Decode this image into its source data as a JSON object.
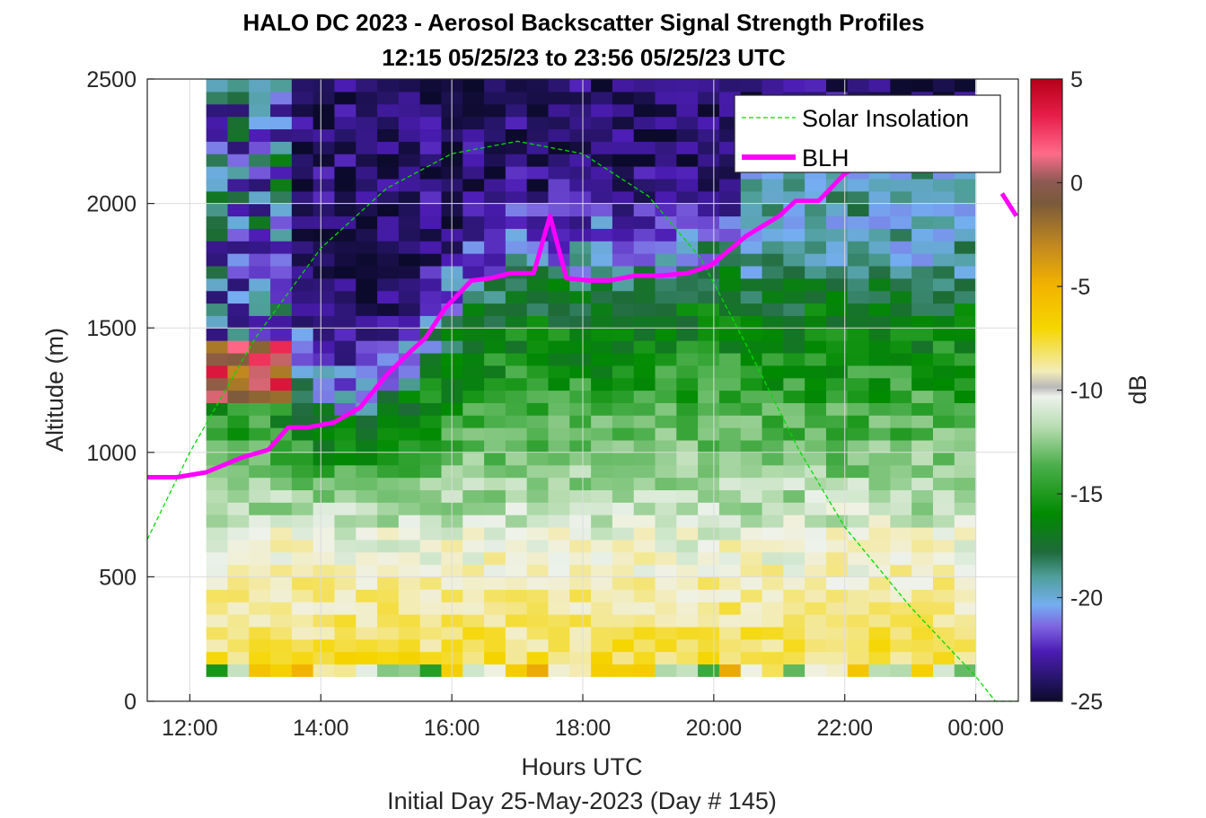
{
  "chart_data": {
    "type": "heatmap",
    "title": "HALO DC 2023 - Aerosol Backscatter Signal Strength Profiles",
    "subtitle": "12:15 05/25/23 to 23:56 05/25/23  UTC",
    "xlabel": "Hours UTC",
    "xlabel2": "Initial Day 25-May-2023 (Day # 145)",
    "ylabel": "Altitude (m)",
    "xlim": [
      11.35,
      24.65
    ],
    "ylim": [
      0,
      2500
    ],
    "x_ticks": [
      12,
      14,
      16,
      18,
      20,
      22,
      24
    ],
    "x_tick_labels": [
      "12:00",
      "14:00",
      "16:00",
      "18:00",
      "20:00",
      "22:00",
      "00:00"
    ],
    "y_ticks": [
      0,
      500,
      1000,
      1500,
      2000,
      2500
    ],
    "y_tick_labels": [
      "0",
      "500",
      "1000",
      "1500",
      "2000",
      "2500"
    ],
    "grid": true,
    "legend_position": "top-right",
    "colorbar": {
      "label": "dB",
      "range": [
        -25,
        5
      ],
      "ticks": [
        5,
        0,
        -5,
        -10,
        -15,
        -20,
        -25
      ],
      "tick_labels": [
        "5",
        "0",
        "-5",
        "-10",
        "-15",
        "-20",
        "-25"
      ]
    },
    "heatmap": {
      "x_start": 12.25,
      "x_end": 24.0,
      "y_start": 100,
      "y_end": 2500,
      "anchor_hours": [
        12.25,
        13.0,
        14.0,
        15.0,
        16.0,
        17.0,
        18.0,
        19.0,
        20.0,
        21.0,
        22.0,
        23.0,
        24.0
      ],
      "aerosol_top_m": [
        1450,
        1450,
        1150,
        1150,
        1500,
        1700,
        1700,
        1700,
        1750,
        1700,
        1700,
        1700,
        1700
      ],
      "note_colormap_ref": "dB"
    },
    "series": [
      {
        "name": "Solar Insolation",
        "style": "dashed",
        "color": "#00dd00",
        "points": [
          [
            11.35,
            650
          ],
          [
            12.0,
            1000
          ],
          [
            13.0,
            1460
          ],
          [
            14.0,
            1820
          ],
          [
            15.0,
            2060
          ],
          [
            16.0,
            2200
          ],
          [
            17.0,
            2250
          ],
          [
            18.0,
            2200
          ],
          [
            19.0,
            2030
          ],
          [
            19.8,
            1780
          ],
          [
            20.5,
            1430
          ],
          [
            21.3,
            1010
          ],
          [
            22.0,
            700
          ],
          [
            23.0,
            380
          ],
          [
            24.0,
            100
          ],
          [
            24.3,
            0
          ],
          [
            24.65,
            0
          ]
        ]
      },
      {
        "name": "BLH",
        "style": "solid",
        "color": "#ff00ff",
        "points": [
          [
            11.35,
            900
          ],
          [
            11.8,
            900
          ],
          [
            12.25,
            920
          ],
          [
            12.8,
            980
          ],
          [
            13.2,
            1010
          ],
          [
            13.5,
            1100
          ],
          [
            13.8,
            1100
          ],
          [
            14.2,
            1120
          ],
          [
            14.6,
            1180
          ],
          [
            15.0,
            1310
          ],
          [
            15.35,
            1400
          ],
          [
            15.6,
            1460
          ],
          [
            15.9,
            1580
          ],
          [
            16.3,
            1690
          ],
          [
            16.6,
            1700
          ],
          [
            16.9,
            1720
          ],
          [
            17.25,
            1720
          ],
          [
            17.5,
            1950
          ],
          [
            17.75,
            1700
          ],
          [
            18.1,
            1690
          ],
          [
            18.4,
            1690
          ],
          [
            18.8,
            1710
          ],
          [
            19.2,
            1710
          ],
          [
            19.6,
            1720
          ],
          [
            19.95,
            1750
          ],
          [
            20.5,
            1870
          ],
          [
            21.0,
            1950
          ],
          [
            21.25,
            2010
          ],
          [
            21.6,
            2010
          ],
          [
            22.0,
            2120
          ],
          [
            22.3,
            2160
          ],
          [
            22.55,
            2175
          ]
        ],
        "extra_segment": [
          [
            24.4,
            2040
          ],
          [
            24.62,
            1950
          ]
        ]
      }
    ]
  }
}
